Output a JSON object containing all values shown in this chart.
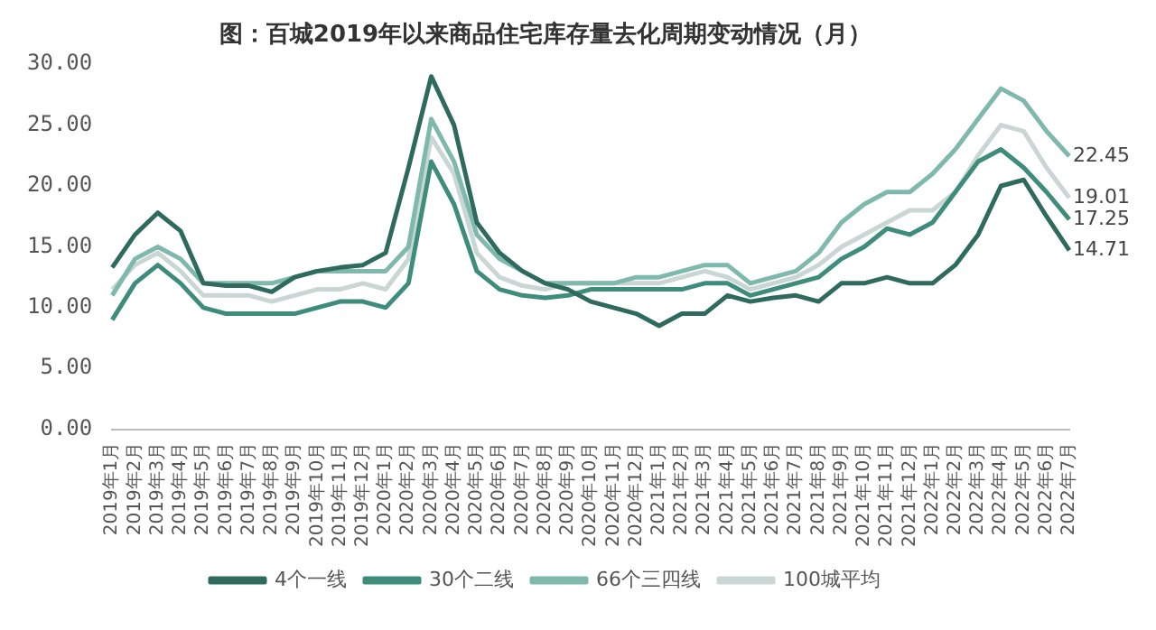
{
  "chart_data": {
    "type": "line",
    "title": "图：百城2019年以来商品住宅库存量去化周期变动情况（月）",
    "categories": [
      "2019年1月",
      "2019年2月",
      "2019年3月",
      "2019年4月",
      "2019年5月",
      "2019年6月",
      "2019年7月",
      "2019年8月",
      "2019年9月",
      "2019年10月",
      "2019年11月",
      "2019年12月",
      "2020年1月",
      "2020年2月",
      "2020年3月",
      "2020年4月",
      "2020年5月",
      "2020年6月",
      "2020年7月",
      "2020年8月",
      "2020年9月",
      "2020年10月",
      "2020年11月",
      "2020年12月",
      "2021年1月",
      "2021年2月",
      "2021年3月",
      "2021年4月",
      "2021年5月",
      "2021年6月",
      "2021年7月",
      "2021年8月",
      "2021年9月",
      "2021年10月",
      "2021年11月",
      "2021年12月",
      "2022年1月",
      "2022年2月",
      "2022年3月",
      "2022年4月",
      "2022年5月",
      "2022年6月",
      "2022年7月"
    ],
    "series": [
      {
        "name": "4个一线",
        "color": "#2e6b5e",
        "values": [
          13.3,
          16,
          17.8,
          16.3,
          12,
          11.8,
          11.8,
          11.3,
          12.5,
          13,
          13.3,
          13.5,
          14.5,
          21.5,
          29,
          25,
          17,
          14.5,
          13,
          12,
          11.5,
          10.5,
          10,
          9.5,
          8.5,
          9.5,
          9.5,
          11,
          10.5,
          10.8,
          11,
          10.5,
          12,
          12,
          12.5,
          12,
          12,
          13.5,
          16,
          20,
          20.5,
          17.5,
          14.71
        ],
        "value_labels": [
          null,
          null,
          null,
          null,
          null,
          null,
          null,
          null,
          null,
          null,
          null,
          null,
          null,
          null,
          null,
          null,
          null,
          null,
          null,
          null,
          null,
          null,
          null,
          null,
          null,
          null,
          null,
          null,
          null,
          null,
          null,
          null,
          null,
          null,
          null,
          null,
          null,
          null,
          null,
          null,
          null,
          null,
          "14.71"
        ]
      },
      {
        "name": "30个二线",
        "color": "#3d8c7c",
        "values": [
          9,
          12,
          13.5,
          12,
          10,
          9.5,
          9.5,
          9.5,
          9.5,
          10,
          10.5,
          10.5,
          10,
          12,
          22,
          18.5,
          13,
          11.5,
          11,
          10.8,
          11,
          11.5,
          11.5,
          11.5,
          11.5,
          11.5,
          12,
          12,
          11,
          11.5,
          12,
          12.5,
          14,
          15,
          16.5,
          16,
          17,
          19.5,
          22,
          23,
          21.5,
          19.5,
          17.25
        ],
        "value_labels": [
          null,
          null,
          null,
          null,
          null,
          null,
          null,
          null,
          null,
          null,
          null,
          null,
          null,
          null,
          null,
          null,
          null,
          null,
          null,
          null,
          null,
          null,
          null,
          null,
          null,
          null,
          null,
          null,
          null,
          null,
          null,
          null,
          null,
          null,
          null,
          null,
          null,
          null,
          null,
          null,
          null,
          null,
          "17.25"
        ]
      },
      {
        "name": "66个三四线",
        "color": "#7fb8ad",
        "values": [
          11,
          14,
          15,
          14,
          12,
          12,
          12,
          12,
          12.5,
          13,
          13,
          13,
          13,
          15,
          25.5,
          22,
          16,
          14,
          13,
          12,
          12,
          12,
          12,
          12.5,
          12.5,
          13,
          13.5,
          13.5,
          12,
          12.5,
          13,
          14.5,
          17,
          18.5,
          19.5,
          19.5,
          21,
          23,
          25.5,
          28,
          27,
          24.5,
          22.45
        ],
        "value_labels": [
          null,
          null,
          null,
          null,
          null,
          null,
          null,
          null,
          null,
          null,
          null,
          null,
          null,
          null,
          null,
          null,
          null,
          null,
          null,
          null,
          null,
          null,
          null,
          null,
          null,
          null,
          null,
          null,
          null,
          null,
          null,
          null,
          null,
          null,
          null,
          null,
          null,
          null,
          null,
          null,
          null,
          null,
          "22.45"
        ]
      },
      {
        "name": "100城平均",
        "color": "#c9d6d3",
        "values": [
          11.5,
          13.5,
          14.5,
          13,
          11,
          11,
          11,
          10.5,
          11,
          11.5,
          11.5,
          12,
          11.5,
          14,
          24,
          21,
          14.5,
          12.5,
          11.8,
          11.5,
          12,
          12,
          12,
          12,
          12,
          12.5,
          13,
          12.5,
          11.5,
          12,
          12.5,
          13.5,
          15,
          16,
          17,
          18,
          18,
          19.5,
          22.5,
          25,
          24.5,
          21.5,
          19.01
        ],
        "value_labels": [
          null,
          null,
          null,
          null,
          null,
          null,
          null,
          null,
          null,
          null,
          null,
          null,
          null,
          null,
          null,
          null,
          null,
          null,
          null,
          null,
          null,
          null,
          null,
          null,
          null,
          null,
          null,
          null,
          null,
          null,
          null,
          null,
          null,
          null,
          null,
          null,
          null,
          null,
          null,
          null,
          null,
          null,
          "19.01"
        ]
      }
    ],
    "ylim": [
      0,
      30
    ],
    "yticks": [
      {
        "value": 0,
        "label": "0.00"
      },
      {
        "value": 5,
        "label": "5.00"
      },
      {
        "value": 10,
        "label": "10.00"
      },
      {
        "value": 15,
        "label": "15.00"
      },
      {
        "value": 20,
        "label": "20.00"
      },
      {
        "value": 25,
        "label": "25.00"
      },
      {
        "value": 30,
        "label": "30.00"
      }
    ],
    "grid": false,
    "legend": "bottom",
    "marker": "none",
    "line_style": "solid"
  }
}
